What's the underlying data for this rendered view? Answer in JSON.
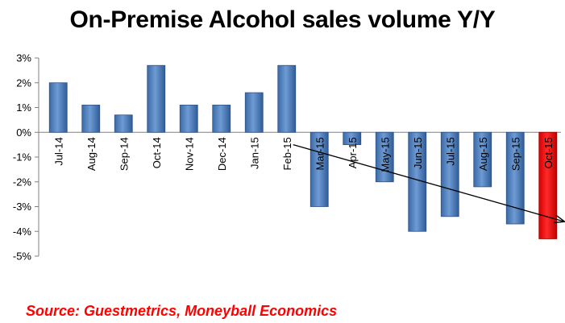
{
  "chart_data": {
    "type": "bar",
    "title": "On-Premise Alcohol sales volume Y/Y",
    "xlabel": "",
    "ylabel": "",
    "categories": [
      "Jul-14",
      "Aug-14",
      "Sep-14",
      "Oct-14",
      "Nov-14",
      "Dec-14",
      "Jan-15",
      "Feb-15",
      "Mar-15",
      "Apr-15",
      "May-15",
      "Jun-15",
      "Jul-15",
      "Aug-15",
      "Sep-15",
      "Oct-15"
    ],
    "values": [
      2.0,
      1.1,
      0.7,
      2.7,
      1.1,
      1.1,
      1.6,
      2.7,
      -3.0,
      -0.5,
      -2.0,
      -4.0,
      -3.4,
      -2.2,
      -3.7,
      -4.3
    ],
    "ylim": [
      -5,
      3
    ],
    "yticks": [
      "3%",
      "2%",
      "1%",
      "0%",
      "-1%",
      "-2%",
      "-3%",
      "-4%",
      "-5%"
    ],
    "ytick_values": [
      3,
      2,
      1,
      0,
      -1,
      -2,
      -3,
      -4,
      -5
    ],
    "grid": false,
    "legend": "none",
    "colors": {
      "default": "#4f81bd",
      "highlight": "#ff0000",
      "highlight_index": 15
    },
    "annotations": [
      {
        "type": "trend-arrow",
        "from": {
          "category": "Feb-15",
          "value": -0.5
        },
        "to": {
          "category": "Oct-15",
          "value": -3.6
        }
      }
    ]
  },
  "source": "Source: Guestmetrics, Moneyball Economics"
}
